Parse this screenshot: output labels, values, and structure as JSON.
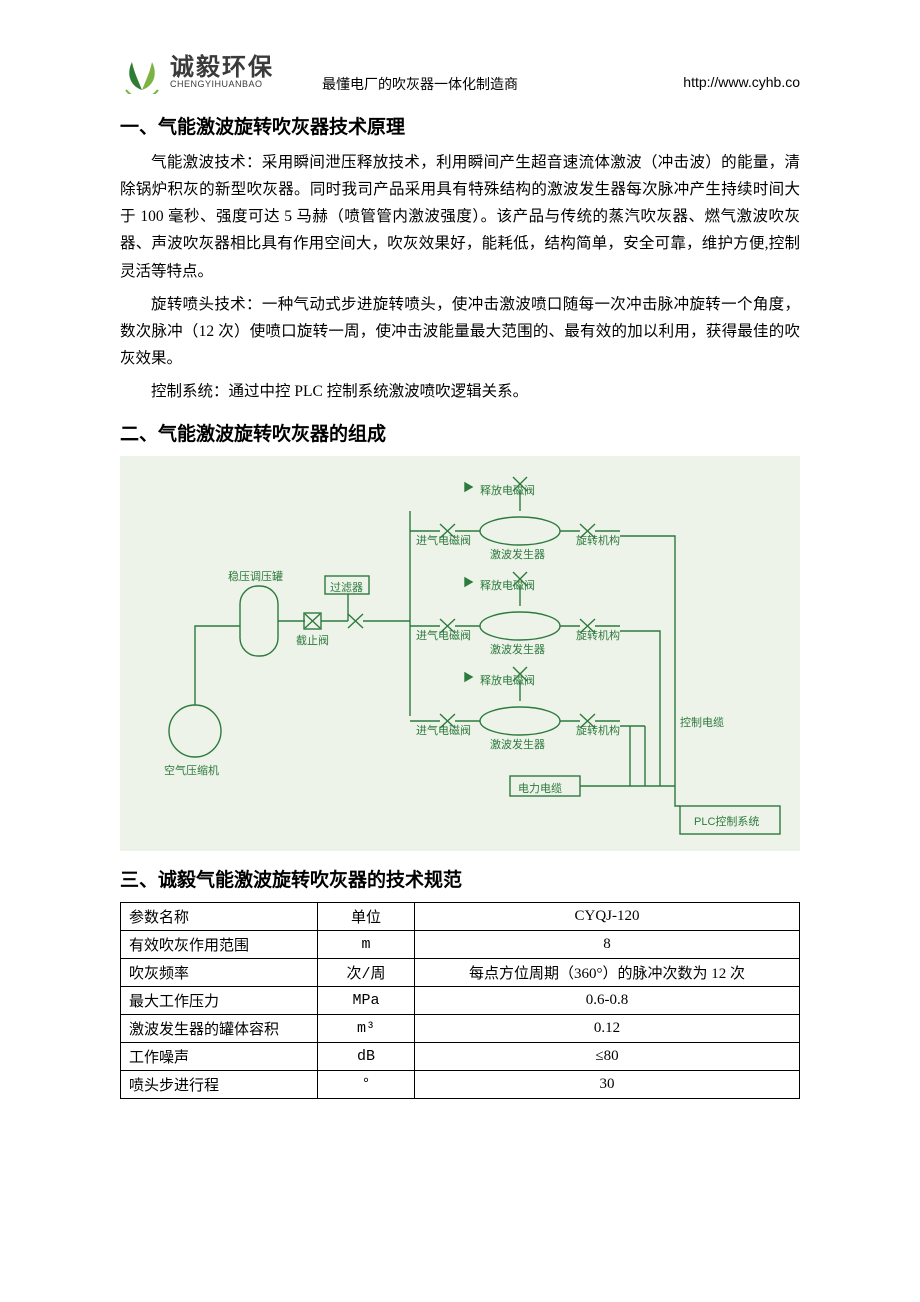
{
  "header": {
    "logo_cn": "诚毅环保",
    "logo_en": "CHENGYIHUANBAO",
    "tagline": "最懂电厂的吹灰器一体化制造商",
    "url": "http://www.cyhb.co",
    "logo_colors": {
      "dark": "#2e7d32",
      "light": "#7cb342"
    }
  },
  "sections": {
    "s1_title": "一、气能激波旋转吹灰器技术原理",
    "s1_p1": "气能激波技术：采用瞬间泄压释放技术，利用瞬间产生超音速流体激波（冲击波）的能量，清除锅炉积灰的新型吹灰器。同时我司产品采用具有特殊结构的激波发生器每次脉冲产生持续时间大于 100 毫秒、强度可达 5 马赫（喷管管内激波强度）。该产品与传统的蒸汽吹灰器、燃气激波吹灰器、声波吹灰器相比具有作用空间大，吹灰效果好，能耗低，结构简单，安全可靠，维护方便,控制灵活等特点。",
    "s1_p2": "旋转喷头技术：一种气动式步进旋转喷头，使冲击激波喷口随每一次冲击脉冲旋转一个角度，数次脉冲（12 次）使喷口旋转一周，使冲击波能量最大范围的、最有效的加以利用，获得最佳的吹灰效果。",
    "s1_p3": "控制系统：通过中控 PLC 控制系统激波喷吹逻辑关系。",
    "s2_title": "二、气能激波旋转吹灰器的组成",
    "s3_title": "三、诚毅气能激波旋转吹灰器的技术规范"
  },
  "diagram": {
    "bg": "#eef3e9",
    "stroke": "#2d7a3e",
    "text_color": "#2d7a3e",
    "labels": {
      "compressor": "空气压缩机",
      "tank": "稳压调压罐",
      "filter": "过滤器",
      "stop_valve": "截止阀",
      "inlet_valve": "进气电磁阀",
      "release_valve": "释放电磁阀",
      "generator": "激波发生器",
      "rotator": "旋转机构",
      "power_cable": "电力电缆",
      "control_cable": "控制电缆",
      "plc": "PLC控制系统"
    }
  },
  "spec_table": {
    "headers": {
      "param": "参数名称",
      "unit": "单位",
      "model": "CYQJ-120"
    },
    "rows": [
      {
        "param": "有效吹灰作用范围",
        "unit": "m",
        "value": "8"
      },
      {
        "param": "吹灰频率",
        "unit": "次/周",
        "value": "每点方位周期（360°）的脉冲次数为 12 次"
      },
      {
        "param": "最大工作压力",
        "unit": "MPa",
        "value": "0.6-0.8"
      },
      {
        "param": "激波发生器的罐体容积",
        "unit": "m³",
        "value": "0.12"
      },
      {
        "param": "工作噪声",
        "unit": "dB",
        "value": "≤80"
      },
      {
        "param": "喷头步进行程",
        "unit": "°",
        "value": "30"
      }
    ]
  }
}
